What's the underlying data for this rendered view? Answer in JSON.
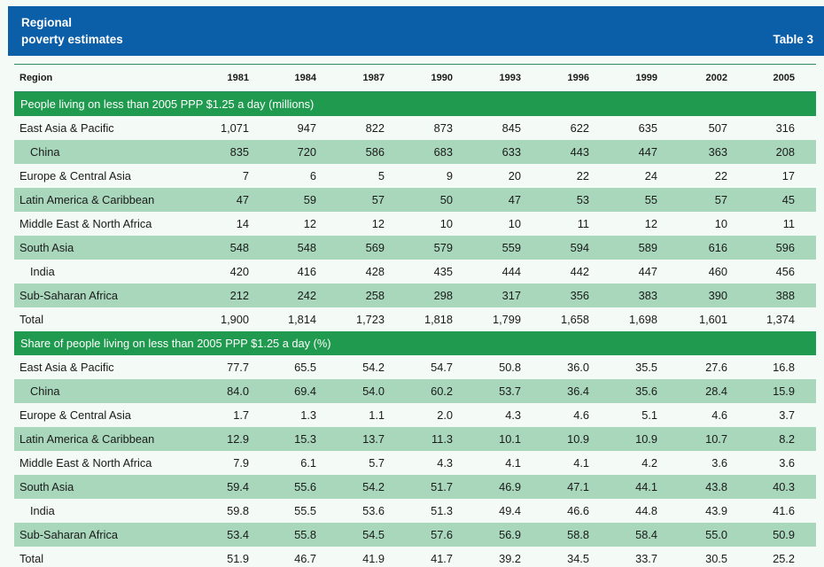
{
  "header": {
    "title_line1": "Regional",
    "title_line2": "poverty estimates",
    "badge": "Table 3"
  },
  "table": {
    "columns": [
      "Region",
      "1981",
      "1984",
      "1987",
      "1990",
      "1993",
      "1996",
      "1999",
      "2002",
      "2005"
    ],
    "sections": [
      {
        "title": "People living on less than 2005 PPP $1.25 a day (millions)",
        "rows": [
          {
            "region": "East Asia & Pacific",
            "values": [
              "1,071",
              "947",
              "822",
              "873",
              "845",
              "622",
              "635",
              "507",
              "316"
            ]
          },
          {
            "region": "China",
            "values": [
              "835",
              "720",
              "586",
              "683",
              "633",
              "443",
              "447",
              "363",
              "208"
            ]
          },
          {
            "region": "Europe & Central Asia",
            "values": [
              "7",
              "6",
              "5",
              "9",
              "20",
              "22",
              "24",
              "22",
              "17"
            ]
          },
          {
            "region": "Latin America & Caribbean",
            "values": [
              "47",
              "59",
              "57",
              "50",
              "47",
              "53",
              "55",
              "57",
              "45"
            ]
          },
          {
            "region": "Middle East & North Africa",
            "values": [
              "14",
              "12",
              "12",
              "10",
              "10",
              "11",
              "12",
              "10",
              "11"
            ]
          },
          {
            "region": "South Asia",
            "values": [
              "548",
              "548",
              "569",
              "579",
              "559",
              "594",
              "589",
              "616",
              "596"
            ]
          },
          {
            "region": "India",
            "values": [
              "420",
              "416",
              "428",
              "435",
              "444",
              "442",
              "447",
              "460",
              "456"
            ]
          },
          {
            "region": "Sub-Saharan Africa",
            "values": [
              "212",
              "242",
              "258",
              "298",
              "317",
              "356",
              "383",
              "390",
              "388"
            ]
          },
          {
            "region": "Total",
            "values": [
              "1,900",
              "1,814",
              "1,723",
              "1,818",
              "1,799",
              "1,658",
              "1,698",
              "1,601",
              "1,374"
            ]
          }
        ]
      },
      {
        "title": "Share of people living on less than 2005 PPP $1.25 a day (%)",
        "rows": [
          {
            "region": "East Asia & Pacific",
            "values": [
              "77.7",
              "65.5",
              "54.2",
              "54.7",
              "50.8",
              "36.0",
              "35.5",
              "27.6",
              "16.8"
            ]
          },
          {
            "region": "China",
            "values": [
              "84.0",
              "69.4",
              "54.0",
              "60.2",
              "53.7",
              "36.4",
              "35.6",
              "28.4",
              "15.9"
            ]
          },
          {
            "region": "Europe & Central Asia",
            "values": [
              "1.7",
              "1.3",
              "1.1",
              "2.0",
              "4.3",
              "4.6",
              "5.1",
              "4.6",
              "3.7"
            ]
          },
          {
            "region": "Latin America & Caribbean",
            "values": [
              "12.9",
              "15.3",
              "13.7",
              "11.3",
              "10.1",
              "10.9",
              "10.9",
              "10.7",
              "8.2"
            ]
          },
          {
            "region": "Middle East & North Africa",
            "values": [
              "7.9",
              "6.1",
              "5.7",
              "4.3",
              "4.1",
              "4.1",
              "4.2",
              "3.6",
              "3.6"
            ]
          },
          {
            "region": "South Asia",
            "values": [
              "59.4",
              "55.6",
              "54.2",
              "51.7",
              "46.9",
              "47.1",
              "44.1",
              "43.8",
              "40.3"
            ]
          },
          {
            "region": "India",
            "values": [
              "59.8",
              "55.5",
              "53.6",
              "51.3",
              "49.4",
              "46.6",
              "44.8",
              "43.9",
              "41.6"
            ]
          },
          {
            "region": "Sub-Saharan Africa",
            "values": [
              "53.4",
              "55.8",
              "54.5",
              "57.6",
              "56.9",
              "58.8",
              "58.4",
              "55.0",
              "50.9"
            ]
          },
          {
            "region": "Total",
            "values": [
              "51.9",
              "46.7",
              "41.9",
              "41.7",
              "39.2",
              "34.5",
              "33.7",
              "30.5",
              "25.2"
            ]
          }
        ]
      }
    ],
    "colors": {
      "header_bg": "#0b5ea8",
      "section_bg": "#1f9a4e",
      "row_shade": "#a9d7bc",
      "page_bg": "#f4faf6"
    }
  }
}
